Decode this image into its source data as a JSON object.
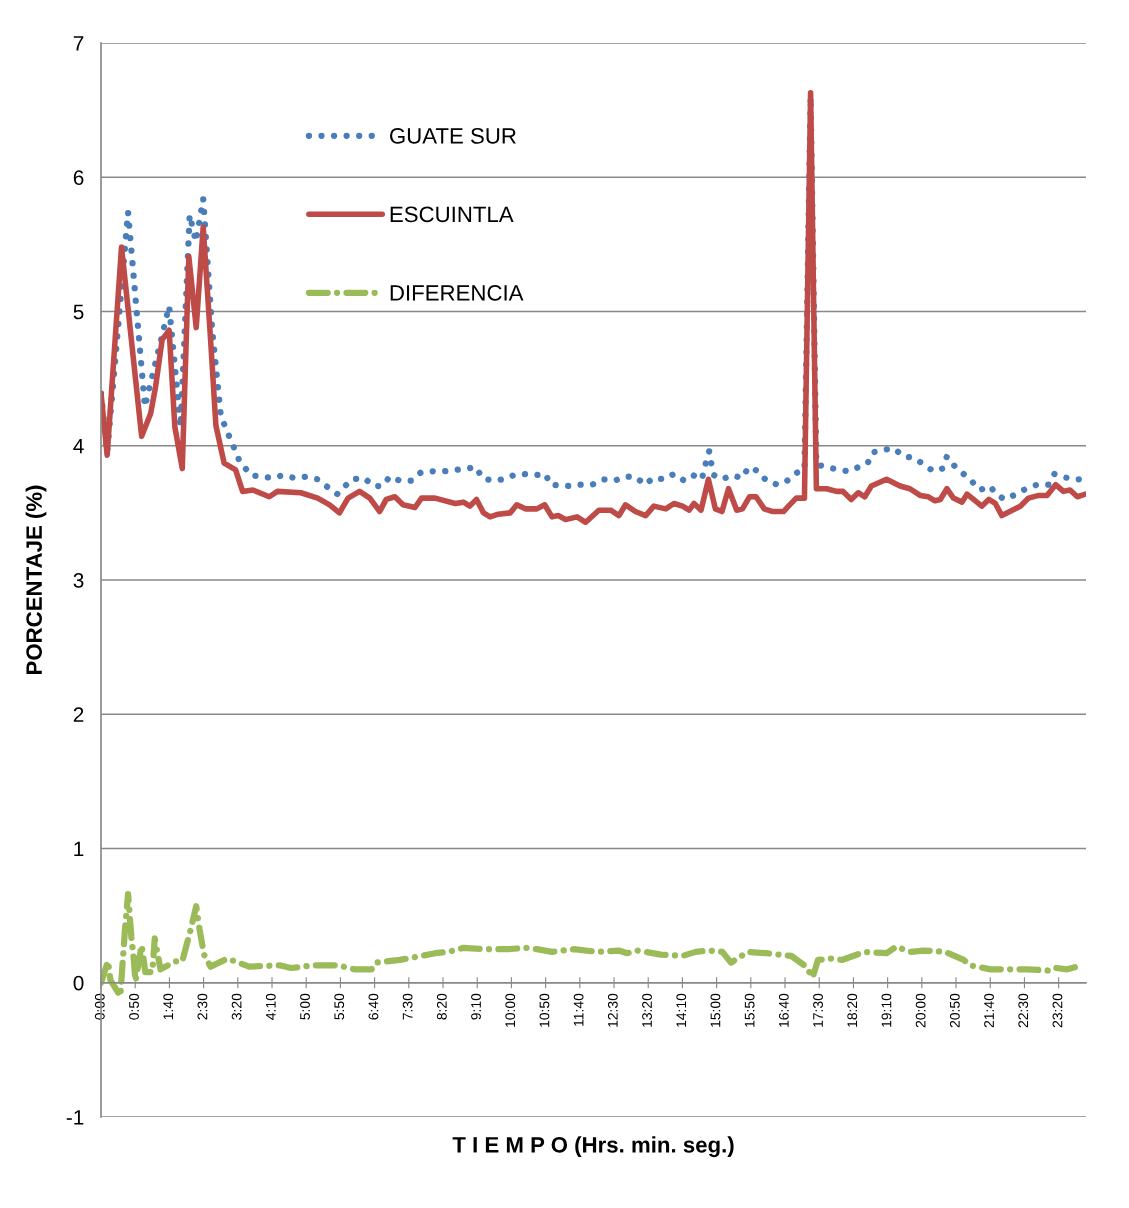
{
  "chart_data": {
    "type": "line",
    "xlabel": "T I E M P O (Hrs. min. seg.)",
    "ylabel": "PORCENTAJE (%)",
    "xlim": [
      0,
      24
    ],
    "ylim": [
      -1,
      7
    ],
    "yticks": [
      -1,
      0,
      1,
      2,
      3,
      4,
      5,
      6,
      7
    ],
    "xticks": [
      {
        "value": 0,
        "label": "0:00"
      },
      {
        "value": 0.8333,
        "label": "0:50"
      },
      {
        "value": 1.6667,
        "label": "1:40"
      },
      {
        "value": 2.5,
        "label": "2:30"
      },
      {
        "value": 3.3333,
        "label": "3:20"
      },
      {
        "value": 4.1667,
        "label": "4:10"
      },
      {
        "value": 5,
        "label": "5:00"
      },
      {
        "value": 5.8333,
        "label": "5:50"
      },
      {
        "value": 6.6667,
        "label": "6:40"
      },
      {
        "value": 7.5,
        "label": "7:30"
      },
      {
        "value": 8.3333,
        "label": "8:20"
      },
      {
        "value": 9.1667,
        "label": "9:10"
      },
      {
        "value": 10,
        "label": "10:00"
      },
      {
        "value": 10.8333,
        "label": "10:50"
      },
      {
        "value": 11.6667,
        "label": "11:40"
      },
      {
        "value": 12.5,
        "label": "12:30"
      },
      {
        "value": 13.3333,
        "label": "13:20"
      },
      {
        "value": 14.1667,
        "label": "14:10"
      },
      {
        "value": 15,
        "label": "15:00"
      },
      {
        "value": 15.8333,
        "label": "15:50"
      },
      {
        "value": 16.6667,
        "label": "16:40"
      },
      {
        "value": 17.5,
        "label": "17:30"
      },
      {
        "value": 18.3333,
        "label": "18:20"
      },
      {
        "value": 19.1667,
        "label": "19:10"
      },
      {
        "value": 20,
        "label": "20:00"
      },
      {
        "value": 20.8333,
        "label": "20:50"
      },
      {
        "value": 21.6667,
        "label": "21:40"
      },
      {
        "value": 22.5,
        "label": "22:30"
      },
      {
        "value": 23.3333,
        "label": "23:20"
      }
    ],
    "grid": "y",
    "legend": "top",
    "marker": "none",
    "series": [
      {
        "name": "GUATE SUR",
        "color": "#4a7ebb",
        "line_style": "dotted",
        "x": [
          0,
          0.15,
          0.66,
          1.07,
          1.66,
          1.94,
          2.16,
          2.31,
          2.49,
          2.71,
          2.92,
          3.37,
          3.65,
          4.18,
          4.43,
          4.71,
          5.0,
          5.28,
          5.53,
          5.76,
          6.11,
          6.41,
          6.64,
          6.85,
          7.04,
          7.28,
          7.57,
          7.79,
          8.07,
          8.36,
          8.65,
          8.91,
          9.15,
          9.28,
          9.54,
          9.81,
          10.05,
          10.28,
          10.56,
          10.83,
          10.95,
          11.41,
          11.68,
          11.97,
          12.23,
          12.52,
          12.76,
          13.01,
          13.26,
          13.45,
          13.72,
          13.96,
          14.21,
          14.43,
          14.64,
          14.7,
          14.82,
          14.87,
          14.94,
          15.13,
          15.37,
          15.62,
          15.78,
          16.02,
          16.21,
          16.48,
          16.72,
          16.96,
          17.14,
          17.29,
          17.43,
          17.71,
          17.98,
          18.23,
          18.45,
          18.68,
          18.8,
          19.06,
          19.32,
          19.56,
          19.81,
          20.05,
          20.28,
          20.5,
          20.61,
          20.76,
          20.98,
          21.2,
          21.42,
          21.65,
          21.85,
          22.03,
          22.3,
          22.54,
          22.81,
          23.09,
          23.23,
          23.42,
          23.68,
          23.93
        ],
        "values": [
          4.39,
          3.95,
          5.74,
          4.29,
          5.04,
          4.14,
          5.72,
          5.52,
          5.84,
          4.86,
          4.22,
          3.89,
          3.78,
          3.76,
          3.78,
          3.76,
          3.77,
          3.75,
          3.69,
          3.64,
          3.75,
          3.76,
          3.7,
          3.7,
          3.77,
          3.74,
          3.74,
          3.8,
          3.81,
          3.81,
          3.82,
          3.83,
          3.84,
          3.76,
          3.74,
          3.75,
          3.78,
          3.79,
          3.78,
          3.79,
          3.71,
          3.7,
          3.71,
          3.71,
          3.75,
          3.74,
          3.77,
          3.77,
          3.71,
          3.76,
          3.75,
          3.79,
          3.74,
          3.78,
          3.75,
          3.83,
          3.96,
          3.87,
          3.78,
          3.75,
          3.78,
          3.76,
          3.84,
          3.81,
          3.74,
          3.71,
          3.74,
          3.8,
          3.82,
          6.6,
          3.86,
          3.84,
          3.82,
          3.81,
          3.84,
          3.87,
          3.95,
          3.97,
          3.98,
          3.92,
          3.91,
          3.86,
          3.81,
          3.83,
          3.92,
          3.86,
          3.8,
          3.74,
          3.67,
          3.7,
          3.63,
          3.6,
          3.64,
          3.68,
          3.71,
          3.71,
          3.79,
          3.77,
          3.75,
          3.75
        ]
      },
      {
        "name": "ESCUINTLA",
        "color": "#be4b48",
        "line_style": "solid",
        "x": [
          0,
          0.15,
          0.5,
          0.99,
          1.21,
          1.33,
          1.49,
          1.66,
          1.8,
          1.98,
          2.14,
          2.32,
          2.49,
          2.67,
          2.8,
          3.0,
          3.28,
          3.45,
          3.7,
          4.1,
          4.3,
          4.87,
          5.28,
          5.57,
          5.81,
          6.02,
          6.3,
          6.55,
          6.79,
          6.95,
          7.16,
          7.36,
          7.65,
          7.81,
          8.14,
          8.63,
          8.83,
          8.99,
          9.15,
          9.32,
          9.48,
          9.68,
          9.97,
          10.13,
          10.34,
          10.62,
          10.81,
          10.99,
          11.14,
          11.32,
          11.6,
          11.81,
          12.13,
          12.42,
          12.62,
          12.78,
          13.02,
          13.27,
          13.47,
          13.76,
          13.96,
          14.17,
          14.33,
          14.45,
          14.62,
          14.8,
          14.97,
          15.13,
          15.29,
          15.49,
          15.63,
          15.8,
          15.96,
          16.16,
          16.37,
          16.63,
          16.78,
          16.94,
          17.14,
          17.29,
          17.43,
          17.68,
          17.92,
          18.08,
          18.28,
          18.45,
          18.61,
          18.77,
          19.14,
          19.47,
          19.71,
          19.96,
          20.16,
          20.32,
          20.45,
          20.61,
          20.77,
          20.98,
          21.1,
          21.26,
          21.46,
          21.63,
          21.79,
          21.95,
          22.4,
          22.6,
          22.85,
          23.05,
          23.26,
          23.45,
          23.61,
          23.79,
          23.99
        ],
        "values": [
          4.39,
          3.93,
          5.48,
          4.07,
          4.24,
          4.44,
          4.79,
          4.86,
          4.14,
          3.83,
          5.41,
          4.88,
          5.63,
          4.79,
          4.15,
          3.87,
          3.82,
          3.66,
          3.67,
          3.62,
          3.66,
          3.65,
          3.61,
          3.56,
          3.5,
          3.61,
          3.66,
          3.61,
          3.51,
          3.6,
          3.62,
          3.56,
          3.54,
          3.61,
          3.61,
          3.57,
          3.58,
          3.55,
          3.6,
          3.5,
          3.47,
          3.49,
          3.5,
          3.56,
          3.53,
          3.53,
          3.56,
          3.47,
          3.48,
          3.45,
          3.47,
          3.43,
          3.52,
          3.52,
          3.48,
          3.56,
          3.51,
          3.48,
          3.55,
          3.53,
          3.57,
          3.55,
          3.52,
          3.57,
          3.52,
          3.75,
          3.53,
          3.51,
          3.68,
          3.52,
          3.53,
          3.62,
          3.62,
          3.53,
          3.51,
          3.51,
          3.56,
          3.61,
          3.61,
          6.63,
          3.68,
          3.68,
          3.66,
          3.66,
          3.6,
          3.65,
          3.62,
          3.7,
          3.75,
          3.7,
          3.68,
          3.63,
          3.62,
          3.59,
          3.6,
          3.68,
          3.61,
          3.58,
          3.64,
          3.6,
          3.55,
          3.6,
          3.57,
          3.48,
          3.55,
          3.61,
          3.63,
          3.63,
          3.71,
          3.66,
          3.67,
          3.62,
          3.64
        ]
      },
      {
        "name": "DIFERENCIA",
        "color": "#9bbb59",
        "line_style": "dashed",
        "x": [
          0,
          0.17,
          0.23,
          0.47,
          0.58,
          0.66,
          0.74,
          0.8,
          0.84,
          0.99,
          1.08,
          1.25,
          1.31,
          1.45,
          1.82,
          1.98,
          2.18,
          2.32,
          2.4,
          2.51,
          2.67,
          3.08,
          3.61,
          4.35,
          4.63,
          5.2,
          5.77,
          6.18,
          6.59,
          6.71,
          7.28,
          7.81,
          8.14,
          8.46,
          8.83,
          9.4,
          9.93,
          10.34,
          10.62,
          10.99,
          11.52,
          12.09,
          12.62,
          12.82,
          13.07,
          13.64,
          14.17,
          14.49,
          14.82,
          15.14,
          15.35,
          15.76,
          16.21,
          16.82,
          17.18,
          17.34,
          17.47,
          17.8,
          18.05,
          18.61,
          19.14,
          19.38,
          19.71,
          20.04,
          20.57,
          21.02,
          21.18,
          21.67,
          21.99,
          22.56,
          23.14,
          23.28,
          23.54,
          23.79,
          23.95
        ],
        "values": [
          0,
          0.16,
          0.02,
          -0.1,
          0.38,
          0.66,
          0.34,
          0.17,
          0.01,
          0.28,
          0.08,
          0.08,
          0.33,
          0.1,
          0.16,
          0.16,
          0.39,
          0.57,
          0.4,
          0.21,
          0.12,
          0.18,
          0.12,
          0.13,
          0.11,
          0.13,
          0.13,
          0.1,
          0.1,
          0.15,
          0.17,
          0.2,
          0.22,
          0.23,
          0.26,
          0.25,
          0.25,
          0.26,
          0.25,
          0.23,
          0.25,
          0.23,
          0.24,
          0.22,
          0.24,
          0.21,
          0.2,
          0.23,
          0.24,
          0.23,
          0.15,
          0.23,
          0.22,
          0.2,
          0.12,
          0.04,
          0.17,
          0.18,
          0.17,
          0.23,
          0.22,
          0.27,
          0.23,
          0.24,
          0.23,
          0.17,
          0.13,
          0.1,
          0.1,
          0.1,
          0.09,
          0.11,
          0.1,
          0.12,
          0.12
        ]
      }
    ]
  }
}
